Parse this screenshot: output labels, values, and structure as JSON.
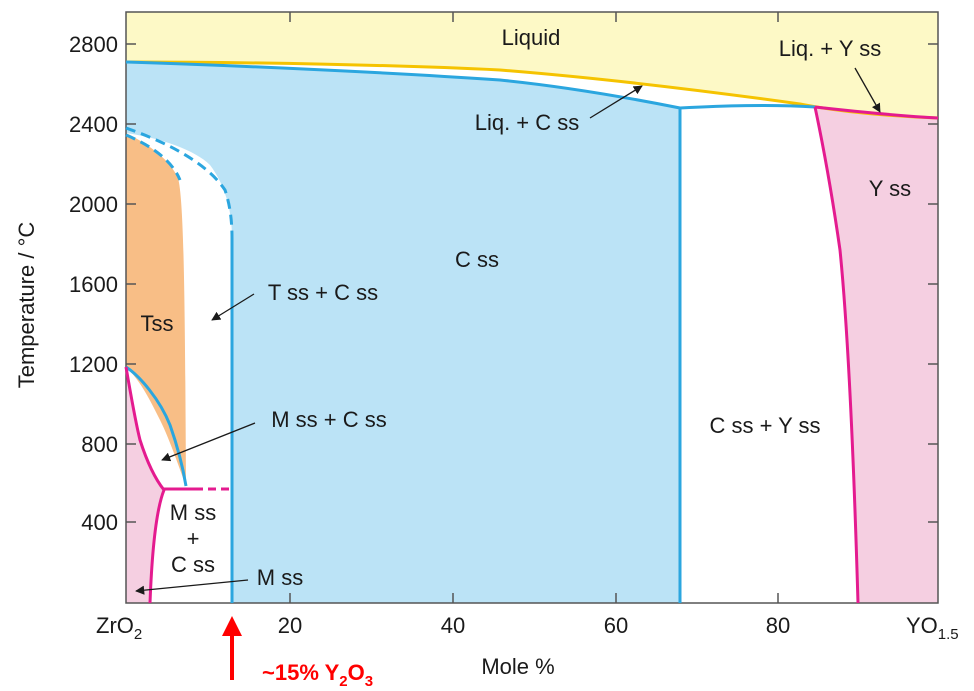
{
  "axes": {
    "ylabel": "Temperature / °C",
    "xlabel": "Mole %",
    "y_ticks": [
      "2800",
      "2400",
      "2000",
      "1600",
      "1200",
      "800",
      "400"
    ],
    "x_ticks": [
      "20",
      "40",
      "60",
      "80"
    ],
    "x_left_end": "ZrO",
    "x_left_end_sub": "2",
    "x_right_end": "YO",
    "x_right_end_sub": "1.5",
    "x_range": [
      0,
      100
    ],
    "y_range": [
      0,
      2960
    ]
  },
  "phases": {
    "liquid": "Liquid",
    "liq_y": "Liq. + Y ss",
    "liq_c": "Liq. + C ss",
    "y_ss": "Y ss",
    "c_ss": "C ss",
    "t_c": "T ss + C ss",
    "tss": "Tss",
    "m_c": "M ss + C ss",
    "c_y": "C ss + Y ss",
    "m_c_stack_1": "M ss",
    "m_c_stack_2": "+",
    "m_c_stack_3": "C ss",
    "m_ss": "M ss"
  },
  "callout": {
    "prefix": "~15% Y",
    "sub1": "2",
    "mid": "O",
    "sub2": "3"
  },
  "colors": {
    "liquid_fill": "#fdf9c6",
    "cubic_fill": "#bbe3f6",
    "tetragonal_fill": "#f8be86",
    "y_ss_fill": "#f5cfe1",
    "cubic_line": "#2ba6df",
    "monoclinic_line": "#e41b8f",
    "liquidus_line": "#f5c300",
    "callout": "#ff0000"
  }
}
